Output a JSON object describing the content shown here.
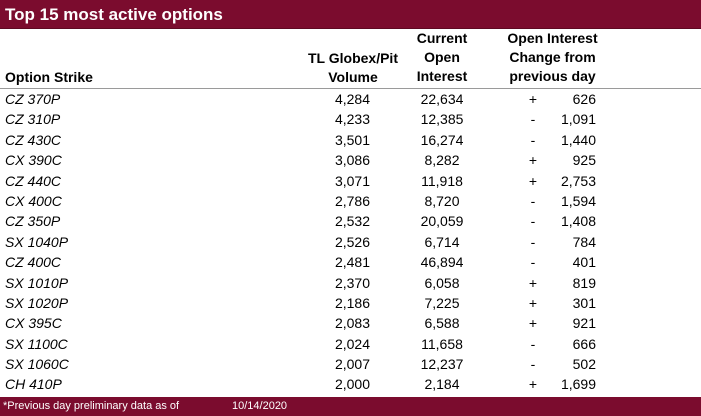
{
  "title": "Top 15 most active options",
  "headers": {
    "strike": "Option Strike",
    "volume": [
      "TL Globex/Pit",
      "Volume"
    ],
    "open_interest": [
      "Current",
      "Open",
      "Interest"
    ],
    "change": [
      "Open Interest",
      "Change from",
      "previous day"
    ]
  },
  "rows": [
    {
      "strike": "CZ 370P",
      "volume": "4,284",
      "oi": "22,634",
      "sign": "+",
      "change": "626"
    },
    {
      "strike": "CZ 310P",
      "volume": "4,233",
      "oi": "12,385",
      "sign": "-",
      "change": "1,091"
    },
    {
      "strike": "CZ 430C",
      "volume": "3,501",
      "oi": "16,274",
      "sign": "-",
      "change": "1,440"
    },
    {
      "strike": "CX 390C",
      "volume": "3,086",
      "oi": "8,282",
      "sign": "+",
      "change": "925"
    },
    {
      "strike": "CZ 440C",
      "volume": "3,071",
      "oi": "11,918",
      "sign": "+",
      "change": "2,753"
    },
    {
      "strike": "CX 400C",
      "volume": "2,786",
      "oi": "8,720",
      "sign": "-",
      "change": "1,594"
    },
    {
      "strike": "CZ 350P",
      "volume": "2,532",
      "oi": "20,059",
      "sign": "-",
      "change": "1,408"
    },
    {
      "strike": "SX 1040P",
      "volume": "2,526",
      "oi": "6,714",
      "sign": "-",
      "change": "784"
    },
    {
      "strike": "CZ 400C",
      "volume": "2,481",
      "oi": "46,894",
      "sign": "-",
      "change": "401"
    },
    {
      "strike": "SX 1010P",
      "volume": "2,370",
      "oi": "6,058",
      "sign": "+",
      "change": "819"
    },
    {
      "strike": "SX 1020P",
      "volume": "2,186",
      "oi": "7,225",
      "sign": "+",
      "change": "301"
    },
    {
      "strike": "CX 395C",
      "volume": "2,083",
      "oi": "6,588",
      "sign": "+",
      "change": "921"
    },
    {
      "strike": "SX 1100C",
      "volume": "2,024",
      "oi": "11,658",
      "sign": "-",
      "change": "666"
    },
    {
      "strike": "SX 1060C",
      "volume": "2,007",
      "oi": "12,237",
      "sign": "-",
      "change": "502"
    },
    {
      "strike": "CH 410P",
      "volume": "2,000",
      "oi": "2,184",
      "sign": "+",
      "change": "1,699"
    }
  ],
  "footer": {
    "note": "*Previous day preliminary data as of",
    "date": "10/14/2020"
  },
  "colors": {
    "header_bar": "#7b0c2e",
    "header_text": "#ffffff"
  }
}
